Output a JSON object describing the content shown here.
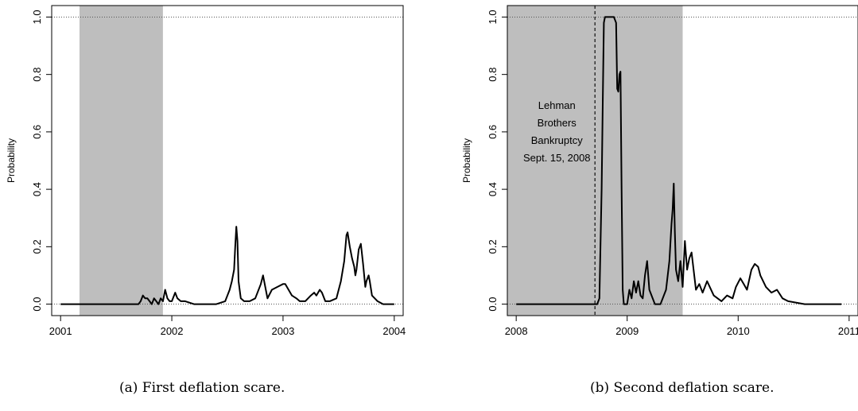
{
  "chart_data": [
    {
      "type": "line",
      "ylabel": "Probability",
      "xlabel": "",
      "xlim": [
        2000.92,
        2004.08
      ],
      "ylim": [
        -0.04,
        1.04
      ],
      "x_ticks": [
        2001,
        2002,
        2003,
        2004
      ],
      "x_tick_labels": [
        "2001",
        "2002",
        "2003",
        "2004"
      ],
      "y_ticks": [
        0.0,
        0.2,
        0.4,
        0.6,
        0.8,
        1.0
      ],
      "y_tick_labels": [
        "0.0",
        "0.2",
        "0.4",
        "0.6",
        "0.8",
        "1.0"
      ],
      "shaded_region": [
        2001.17,
        2001.92
      ],
      "reference_lines_y": [
        0.0,
        1.0
      ],
      "grid": false,
      "series": [
        {
          "x": [
            2001.0,
            2001.7,
            2001.72,
            2001.74,
            2001.76,
            2001.78,
            2001.8,
            2001.82,
            2001.84,
            2001.86,
            2001.88,
            2001.9,
            2001.92,
            2001.94,
            2001.96,
            2001.98,
            2002.0,
            2002.03,
            2002.05,
            2002.08,
            2002.12,
            2002.2,
            2002.3,
            2002.4,
            2002.48,
            2002.5,
            2002.52,
            2002.54,
            2002.56,
            2002.57,
            2002.58,
            2002.59,
            2002.6,
            2002.62,
            2002.65,
            2002.7,
            2002.75,
            2002.8,
            2002.82,
            2002.84,
            2002.86,
            2002.9,
            2002.95,
            2003.0,
            2003.02,
            2003.05,
            2003.08,
            2003.12,
            2003.15,
            2003.2,
            2003.25,
            2003.28,
            2003.3,
            2003.33,
            2003.35,
            2003.38,
            2003.42,
            2003.48,
            2003.52,
            2003.55,
            2003.57,
            2003.58,
            2003.6,
            2003.62,
            2003.64,
            2003.65,
            2003.66,
            2003.68,
            2003.7,
            2003.72,
            2003.74,
            2003.75,
            2003.77,
            2003.78,
            2003.8,
            2003.85,
            2003.9,
            2003.95,
            2004.0
          ],
          "y": [
            0.0,
            0.0,
            0.01,
            0.03,
            0.02,
            0.02,
            0.01,
            0.0,
            0.02,
            0.01,
            0.0,
            0.02,
            0.01,
            0.05,
            0.02,
            0.01,
            0.01,
            0.04,
            0.02,
            0.01,
            0.01,
            0.0,
            0.0,
            0.0,
            0.01,
            0.03,
            0.05,
            0.08,
            0.12,
            0.2,
            0.27,
            0.22,
            0.08,
            0.02,
            0.01,
            0.01,
            0.02,
            0.07,
            0.1,
            0.06,
            0.02,
            0.05,
            0.06,
            0.07,
            0.07,
            0.05,
            0.03,
            0.02,
            0.01,
            0.01,
            0.03,
            0.04,
            0.03,
            0.05,
            0.04,
            0.01,
            0.01,
            0.02,
            0.08,
            0.15,
            0.24,
            0.25,
            0.2,
            0.16,
            0.13,
            0.1,
            0.12,
            0.19,
            0.21,
            0.14,
            0.06,
            0.08,
            0.1,
            0.08,
            0.03,
            0.01,
            0.0,
            0.0,
            0.0
          ]
        }
      ]
    },
    {
      "type": "line",
      "ylabel": "Probability",
      "xlabel": "",
      "xlim": [
        2007.92,
        2011.08
      ],
      "ylim": [
        -0.04,
        1.04
      ],
      "x_ticks": [
        2008,
        2009,
        2010,
        2011
      ],
      "x_tick_labels": [
        "2008",
        "2009",
        "2010",
        "2011"
      ],
      "y_ticks": [
        0.0,
        0.2,
        0.4,
        0.6,
        0.8,
        1.0
      ],
      "y_tick_labels": [
        "0.0",
        "0.2",
        "0.4",
        "0.6",
        "0.8",
        "1.0"
      ],
      "shaded_region": [
        2007.92,
        2009.5
      ],
      "vertical_line_x": 2008.71,
      "reference_lines_y": [
        0.0,
        1.0
      ],
      "annotation_lines": [
        "Lehman",
        "Brothers",
        "Bankruptcy",
        "Sept. 15, 2008"
      ],
      "grid": false,
      "series": [
        {
          "x": [
            2008.0,
            2008.73,
            2008.75,
            2008.77,
            2008.78,
            2008.79,
            2008.8,
            2008.82,
            2008.84,
            2008.86,
            2008.88,
            2008.9,
            2008.91,
            2008.92,
            2008.93,
            2008.94,
            2008.95,
            2008.96,
            2008.97,
            2009.0,
            2009.02,
            2009.04,
            2009.06,
            2009.08,
            2009.1,
            2009.12,
            2009.14,
            2009.16,
            2009.18,
            2009.2,
            2009.25,
            2009.3,
            2009.35,
            2009.38,
            2009.4,
            2009.41,
            2009.42,
            2009.43,
            2009.44,
            2009.46,
            2009.48,
            2009.5,
            2009.52,
            2009.54,
            2009.56,
            2009.58,
            2009.62,
            2009.65,
            2009.68,
            2009.72,
            2009.78,
            2009.85,
            2009.9,
            2009.95,
            2009.98,
            2010.02,
            2010.05,
            2010.08,
            2010.12,
            2010.15,
            2010.18,
            2010.2,
            2010.25,
            2010.3,
            2010.35,
            2010.4,
            2010.45,
            2010.6,
            2010.8,
            2010.93
          ],
          "y": [
            0.0,
            0.0,
            0.02,
            0.4,
            0.7,
            0.98,
            1.0,
            1.0,
            1.0,
            1.0,
            1.0,
            0.98,
            0.75,
            0.74,
            0.8,
            0.81,
            0.4,
            0.05,
            0.0,
            0.0,
            0.05,
            0.02,
            0.08,
            0.04,
            0.08,
            0.03,
            0.02,
            0.1,
            0.15,
            0.05,
            0.0,
            0.0,
            0.05,
            0.15,
            0.28,
            0.33,
            0.42,
            0.25,
            0.12,
            0.08,
            0.15,
            0.06,
            0.22,
            0.12,
            0.16,
            0.18,
            0.05,
            0.07,
            0.04,
            0.08,
            0.03,
            0.01,
            0.03,
            0.02,
            0.06,
            0.09,
            0.07,
            0.05,
            0.12,
            0.14,
            0.13,
            0.1,
            0.06,
            0.04,
            0.05,
            0.02,
            0.01,
            0.0,
            0.0,
            0.0
          ]
        }
      ]
    }
  ],
  "captions": {
    "a": "(a)  First deflation scare.",
    "b": "(b)  Second deflation scare."
  }
}
